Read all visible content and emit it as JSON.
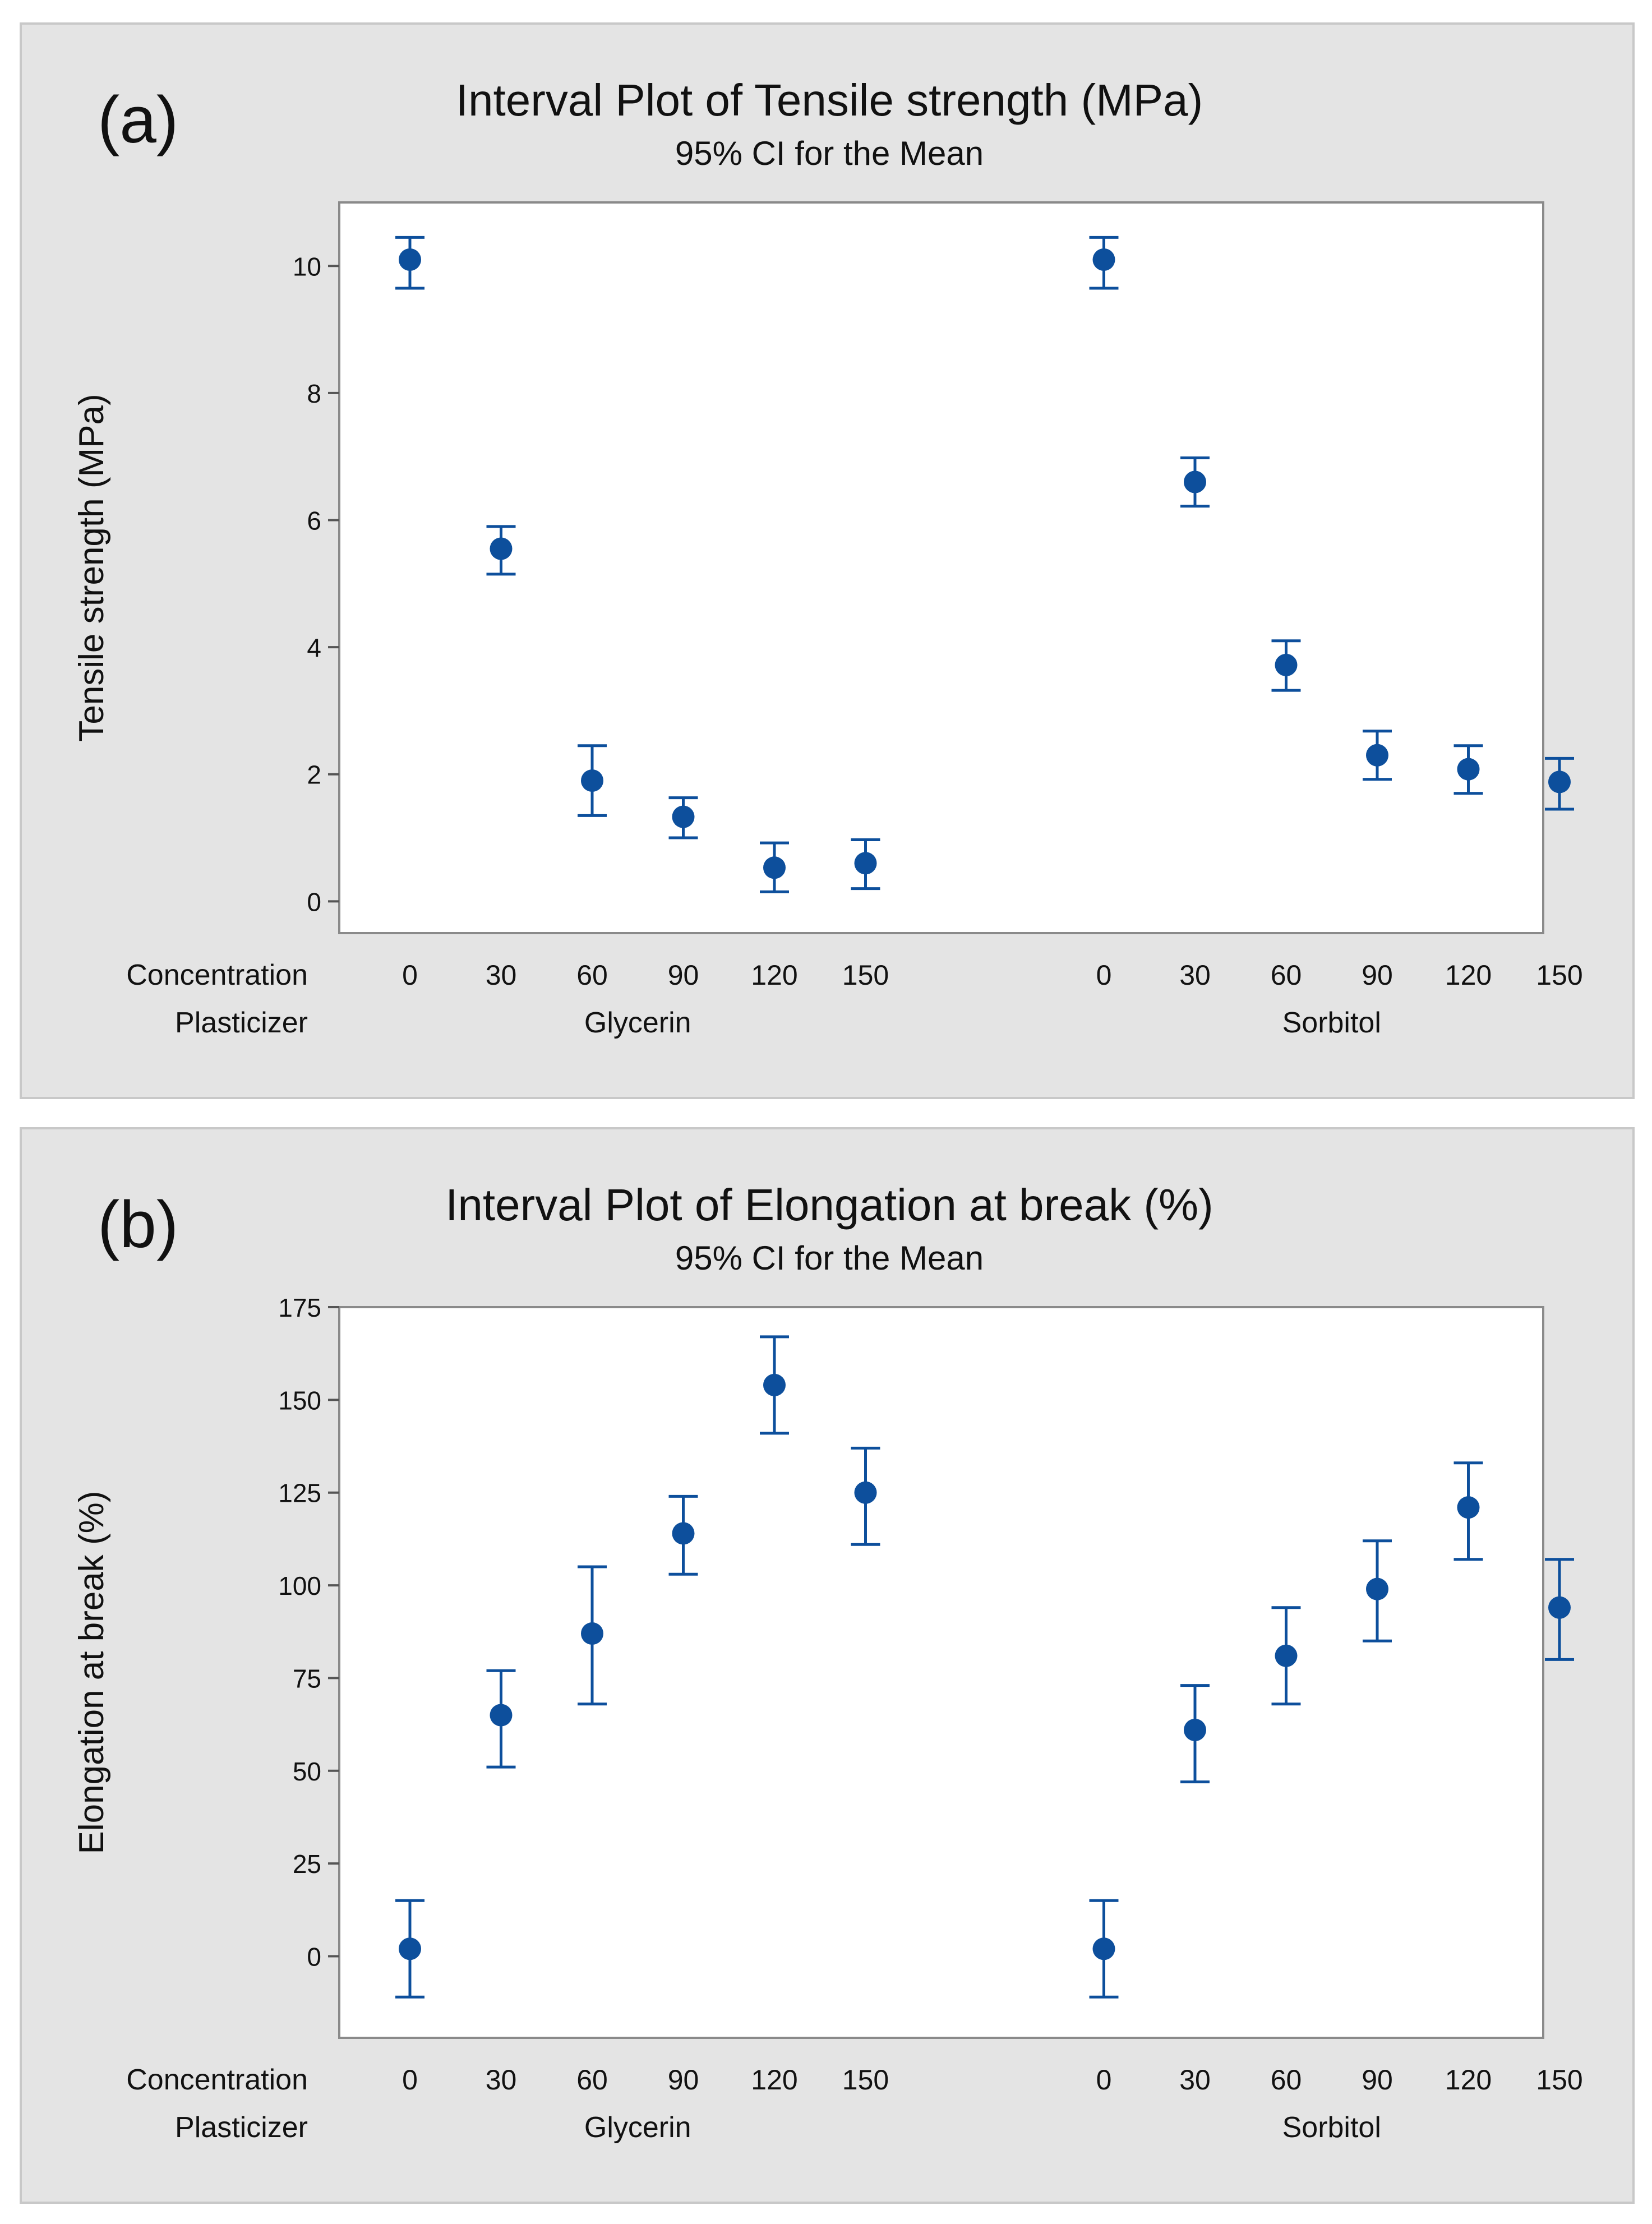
{
  "colors": {
    "marker": "#0d4f9c",
    "panel_bg": "#e4e4e4",
    "plot_bg": "#ffffff",
    "frame": "#8a8a8a"
  },
  "chart_data": [
    {
      "type": "scatter",
      "panel_label": "(a)",
      "title": "Interval Plot of Tensile strength (MPa)",
      "subtitle": "95% CI for the Mean",
      "ylabel": "Tensile strength (MPa)",
      "ylim": [
        -0.5,
        11.0
      ],
      "yticks": [
        0,
        2,
        4,
        6,
        8,
        10
      ],
      "row_labels": [
        "Concentration",
        "Plasticizer"
      ],
      "groups": [
        {
          "name": "Glycerin",
          "categories": [
            "0",
            "30",
            "60",
            "90",
            "120",
            "150"
          ],
          "means": [
            10.1,
            5.55,
            1.9,
            1.33,
            0.53,
            0.6
          ],
          "lower": [
            9.65,
            5.15,
            1.35,
            1.0,
            0.15,
            0.2
          ],
          "upper": [
            10.45,
            5.9,
            2.45,
            1.63,
            0.92,
            0.97
          ]
        },
        {
          "name": "Sorbitol",
          "categories": [
            "0",
            "30",
            "60",
            "90",
            "120",
            "150"
          ],
          "means": [
            10.1,
            6.6,
            3.72,
            2.3,
            2.08,
            1.88
          ],
          "lower": [
            9.65,
            6.22,
            3.32,
            1.92,
            1.7,
            1.45
          ],
          "upper": [
            10.45,
            6.98,
            4.1,
            2.68,
            2.45,
            2.25
          ]
        }
      ]
    },
    {
      "type": "scatter",
      "panel_label": "(b)",
      "title": "Interval Plot of Elongation at break (%)",
      "subtitle": "95% CI for the Mean",
      "ylabel": "Elongation at break (%)",
      "ylim": [
        -22,
        175
      ],
      "yticks": [
        0,
        25,
        50,
        75,
        100,
        125,
        150,
        175
      ],
      "row_labels": [
        "Concentration",
        "Plasticizer"
      ],
      "groups": [
        {
          "name": "Glycerin",
          "categories": [
            "0",
            "30",
            "60",
            "90",
            "120",
            "150"
          ],
          "means": [
            2,
            65,
            87,
            114,
            154,
            125
          ],
          "lower": [
            -11,
            51,
            68,
            103,
            141,
            111
          ],
          "upper": [
            15,
            77,
            105,
            124,
            167,
            137
          ]
        },
        {
          "name": "Sorbitol",
          "categories": [
            "0",
            "30",
            "60",
            "90",
            "120",
            "150"
          ],
          "means": [
            2,
            61,
            81,
            99,
            121,
            94
          ],
          "lower": [
            -11,
            47,
            68,
            85,
            107,
            80
          ],
          "upper": [
            15,
            73,
            94,
            112,
            133,
            107
          ]
        }
      ]
    }
  ]
}
